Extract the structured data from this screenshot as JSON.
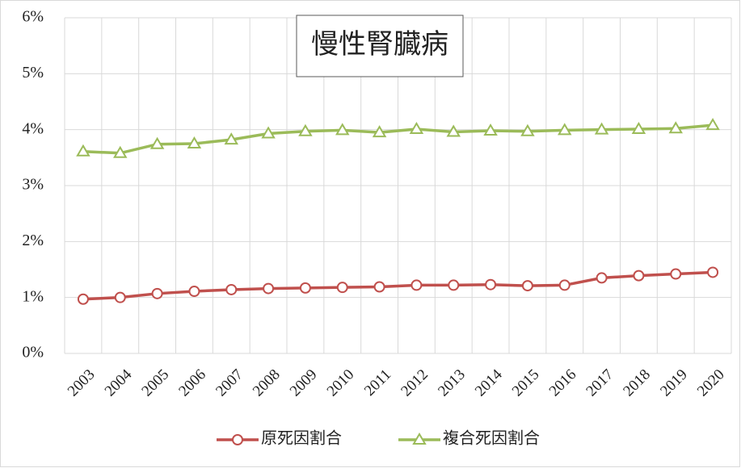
{
  "chart_data": {
    "type": "line",
    "title": "慢性腎臓病",
    "categories": [
      "2003",
      "2004",
      "2005",
      "2006",
      "2007",
      "2008",
      "2009",
      "2010",
      "2011",
      "2012",
      "2013",
      "2014",
      "2015",
      "2016",
      "2017",
      "2018",
      "2019",
      "2020"
    ],
    "series": [
      {
        "name": "原死因割合",
        "color": "#c0504d",
        "marker": "circle",
        "values": [
          0.97,
          1.0,
          1.07,
          1.11,
          1.14,
          1.16,
          1.17,
          1.18,
          1.19,
          1.22,
          1.22,
          1.23,
          1.21,
          1.22,
          1.35,
          1.39,
          1.42,
          1.45
        ]
      },
      {
        "name": "複合死因割合",
        "color": "#9bbb59",
        "marker": "triangle",
        "values": [
          3.61,
          3.58,
          3.74,
          3.75,
          3.82,
          3.93,
          3.97,
          3.99,
          3.95,
          4.01,
          3.96,
          3.98,
          3.97,
          3.99,
          4.0,
          4.01,
          4.02,
          4.08
        ]
      }
    ],
    "ylim": [
      0,
      6
    ],
    "yticks": [
      {
        "value": 0,
        "label": "0%"
      },
      {
        "value": 1,
        "label": "1%"
      },
      {
        "value": 2,
        "label": "2%"
      },
      {
        "value": 3,
        "label": "3%"
      },
      {
        "value": 4,
        "label": "4%"
      },
      {
        "value": 5,
        "label": "5%"
      },
      {
        "value": 6,
        "label": "6%"
      }
    ],
    "grid": true,
    "legend": "bottom"
  }
}
